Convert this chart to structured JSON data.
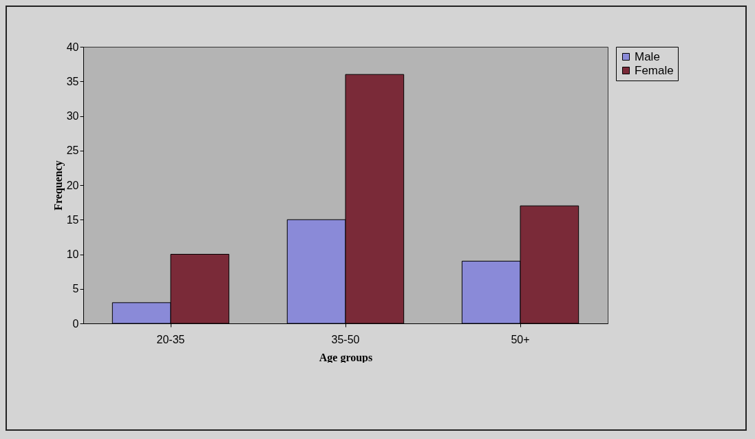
{
  "chart_data": {
    "type": "bar",
    "xlabel": "Age groups",
    "ylabel": "Frequency",
    "categories": [
      "20-35",
      "35-50",
      "50+"
    ],
    "series": [
      {
        "name": "Male",
        "color": "#8a8ad8",
        "values": [
          3,
          15,
          9
        ]
      },
      {
        "name": "Female",
        "color": "#7a2a38",
        "values": [
          10,
          36,
          17
        ]
      }
    ],
    "ylim": [
      0,
      40
    ],
    "yticks": [
      0,
      5,
      10,
      15,
      20,
      25,
      30,
      35,
      40
    ],
    "grid": false,
    "legend": "right"
  }
}
